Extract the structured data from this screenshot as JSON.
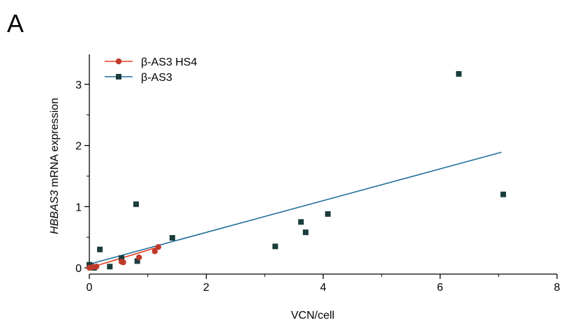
{
  "panel_label": "A",
  "chart_data": {
    "type": "scatter",
    "title": "",
    "xlabel": "VCN/cell",
    "ylabel_italic": "HBBAS3",
    "ylabel_rest": " mRNA expression",
    "xlim": [
      0,
      8
    ],
    "ylim": [
      0,
      3.5
    ],
    "x_ticks": [
      0,
      2,
      4,
      6,
      8
    ],
    "y_ticks": [
      0,
      1,
      2,
      3
    ],
    "grid": false,
    "legend_position": "top-left",
    "series": [
      {
        "name": "β-AS3 HS4",
        "color": "#c0392b",
        "line_color": "#e8401c",
        "marker": "circle",
        "points": [
          {
            "x": 0.0,
            "y": 0.0
          },
          {
            "x": 0.05,
            "y": 0.01
          },
          {
            "x": 0.12,
            "y": 0.02
          },
          {
            "x": 0.55,
            "y": 0.1
          },
          {
            "x": 0.58,
            "y": 0.09
          },
          {
            "x": 0.85,
            "y": 0.17
          },
          {
            "x": 1.12,
            "y": 0.27
          },
          {
            "x": 1.18,
            "y": 0.34
          }
        ],
        "fit": {
          "x": [
            0.0,
            1.18
          ],
          "y": [
            0.0,
            0.34
          ]
        }
      },
      {
        "name": "β-AS3",
        "color": "#1c3d3e",
        "line_color": "#1f6e9c",
        "marker": "square",
        "points": [
          {
            "x": 0.0,
            "y": 0.05
          },
          {
            "x": 0.03,
            "y": 0.03
          },
          {
            "x": 0.08,
            "y": 0.0
          },
          {
            "x": 0.18,
            "y": 0.3
          },
          {
            "x": 0.35,
            "y": 0.02
          },
          {
            "x": 0.55,
            "y": 0.16
          },
          {
            "x": 0.8,
            "y": 1.04
          },
          {
            "x": 0.82,
            "y": 0.11
          },
          {
            "x": 1.42,
            "y": 0.49
          },
          {
            "x": 3.18,
            "y": 0.35
          },
          {
            "x": 3.62,
            "y": 0.75
          },
          {
            "x": 3.7,
            "y": 0.58
          },
          {
            "x": 4.08,
            "y": 0.88
          },
          {
            "x": 6.32,
            "y": 3.17
          },
          {
            "x": 7.08,
            "y": 1.2
          }
        ],
        "fit": {
          "x": [
            0.0,
            7.05
          ],
          "y": [
            0.06,
            1.89
          ]
        }
      }
    ]
  }
}
